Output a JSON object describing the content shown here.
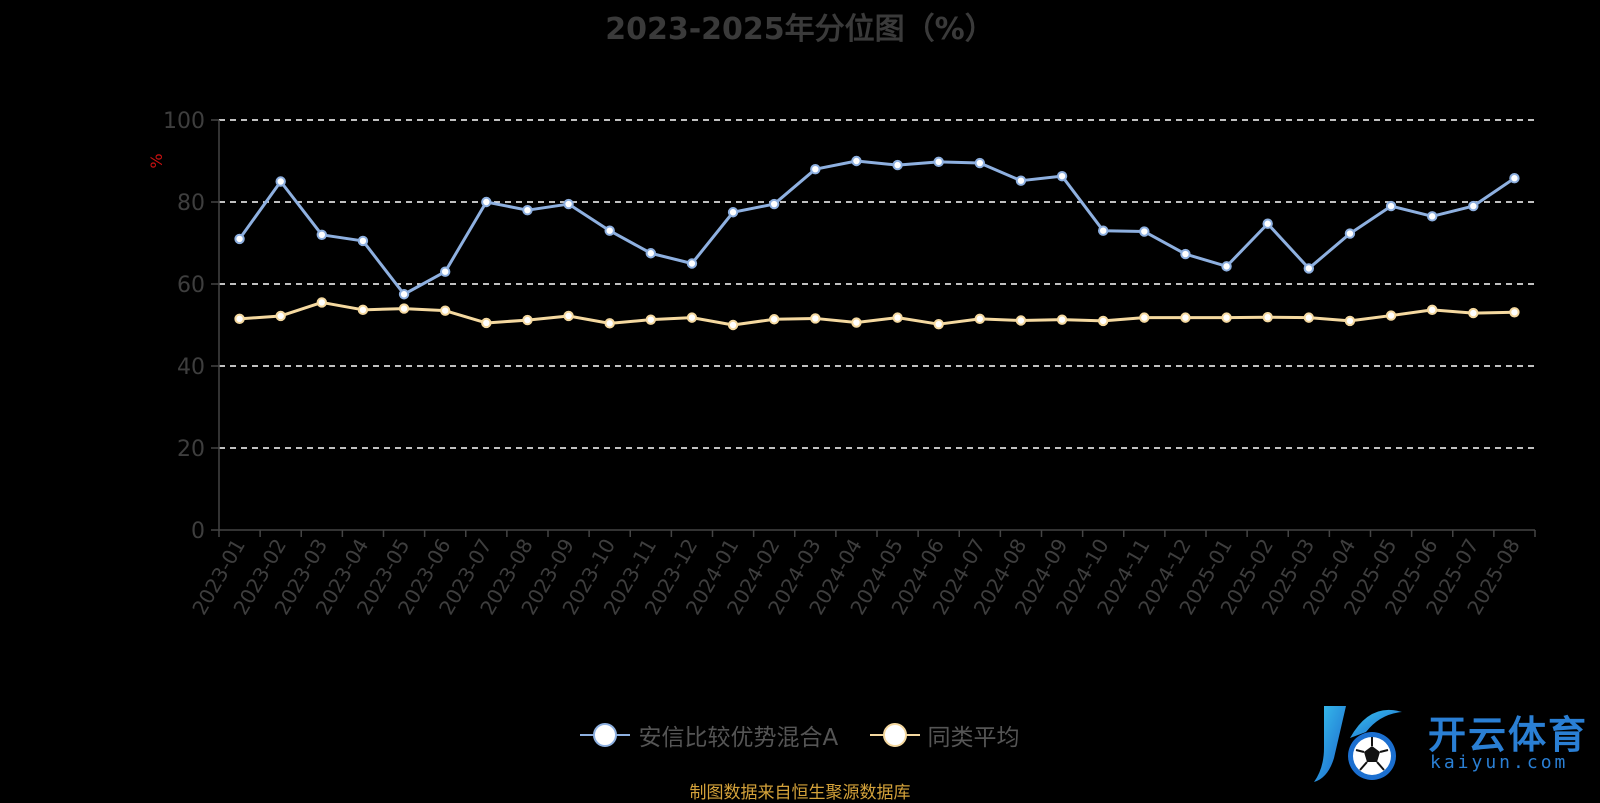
{
  "chart_data": {
    "type": "line",
    "title": "2023-2025年分位图（%）",
    "ylabel": "%",
    "ylim": [
      0,
      100
    ],
    "yticks": [
      0,
      20,
      40,
      60,
      80,
      100
    ],
    "grid": true,
    "legend_placement": "bottom",
    "categories": [
      "2023-01",
      "2023-02",
      "2023-03",
      "2023-04",
      "2023-05",
      "2023-06",
      "2023-07",
      "2023-08",
      "2023-09",
      "2023-10",
      "2023-11",
      "2023-12",
      "2024-01",
      "2024-02",
      "2024-03",
      "2024-04",
      "2024-05",
      "2024-06",
      "2024-07",
      "2024-08",
      "2024-09",
      "2024-10",
      "2024-11",
      "2024-12",
      "2025-01",
      "2025-02",
      "2025-03",
      "2025-04",
      "2025-05",
      "2025-06",
      "2025-07",
      "2025-08"
    ],
    "series": [
      {
        "name": "安信比较优势混合A",
        "color": "#8eb0e0",
        "values": [
          71,
          85,
          72,
          70.5,
          57.5,
          63,
          80,
          78,
          79.5,
          73,
          67.5,
          65,
          77.5,
          79.5,
          88,
          90,
          89,
          89.8,
          89.5,
          85.2,
          86.3,
          73,
          72.8,
          67.3,
          64.3,
          74.7,
          63.8,
          72.3,
          79,
          76.5,
          79,
          85.8
        ]
      },
      {
        "name": "同类平均",
        "color": "#f5d9a0",
        "values": [
          51.5,
          52.2,
          55.5,
          53.7,
          54,
          53.5,
          50.5,
          51.2,
          52.2,
          50.4,
          51.3,
          51.8,
          50,
          51.4,
          51.6,
          50.6,
          51.8,
          50.2,
          51.5,
          51.1,
          51.3,
          51,
          51.8,
          51.8,
          51.8,
          51.9,
          51.8,
          51,
          52.3,
          53.7,
          52.9,
          53.1
        ]
      }
    ]
  },
  "footer": {
    "source": "制图数据来自恒生聚源数据库"
  },
  "logo": {
    "brand": "开云体育",
    "url": "kaiyun.com"
  }
}
